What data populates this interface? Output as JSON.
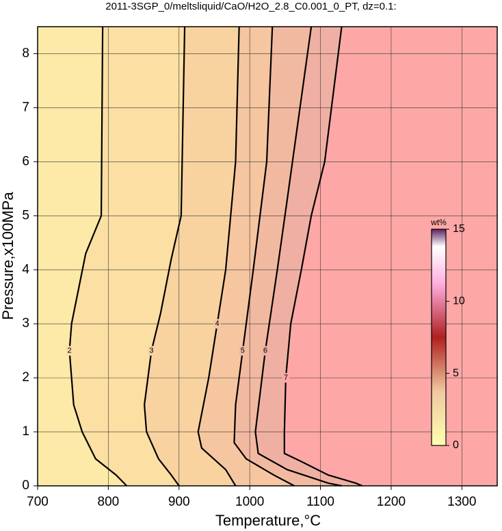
{
  "chart_data": {
    "type": "contour",
    "title": "2011-3SGP_0/meltsliquid/CaO/H2O_2.8_C0.001_0_PT, dz=0.1:",
    "x_label": "Temperature,°C",
    "y_label": "Pressure,x100MPa",
    "xlim": [
      700,
      1350
    ],
    "ylim": [
      0,
      8.5
    ],
    "xticks": [
      700,
      800,
      900,
      1000,
      1100,
      1200,
      1300
    ],
    "yticks": [
      0,
      1,
      2,
      3,
      4,
      5,
      6,
      7,
      8
    ],
    "grid": true,
    "background": "#fde9a8",
    "series": [
      {
        "level": 2,
        "color": "#fbdfa3",
        "x": [
          792,
          790,
          768,
          748,
          745,
          751,
          763,
          782,
          811,
          826
        ],
        "y": [
          8.5,
          5,
          4.3,
          3,
          2.5,
          1.5,
          1,
          0.5,
          0.2,
          0
        ]
      },
      {
        "level": 3,
        "color": "#f8d3a0",
        "x": [
          908,
          903,
          889,
          874,
          861,
          851,
          854,
          871,
          889,
          900
        ],
        "y": [
          8.5,
          5,
          4.2,
          3.2,
          2.5,
          1.5,
          1,
          0.5,
          0.2,
          0
        ]
      },
      {
        "level": 4,
        "color": "#f5c6a0",
        "x": [
          985,
          980,
          966,
          954,
          942,
          927,
          932,
          966,
          980
        ],
        "y": [
          8.5,
          6,
          4,
          3,
          2,
          1,
          0.7,
          0.3,
          0
        ]
      },
      {
        "level": 5,
        "color": "#f2b9a1",
        "x": [
          1032,
          1024,
          1005,
          990,
          980,
          978,
          995,
          1034,
          1063
        ],
        "y": [
          8.5,
          6,
          4,
          2.5,
          1.5,
          0.8,
          0.5,
          0.2,
          0
        ]
      },
      {
        "level": 6,
        "color": "#efb0a3",
        "x": [
          1087,
          1053,
          1039,
          1022,
          1008,
          1012,
          1053,
          1111,
          1130
        ],
        "y": [
          8.5,
          5.3,
          4,
          2.5,
          1,
          0.6,
          0.3,
          0.05,
          0
        ]
      },
      {
        "level": 7,
        "color": "#fda8a7",
        "x": [
          1130,
          1106,
          1087,
          1073,
          1058,
          1051,
          1049,
          1049,
          1073,
          1111,
          1150,
          1159
        ],
        "y": [
          8.5,
          6,
          5,
          4,
          3,
          2,
          1,
          0.6,
          0.45,
          0.2,
          0.05,
          0
        ]
      }
    ],
    "colorbar": {
      "label": "wt%",
      "clim": [
        0,
        15
      ],
      "ticks": [
        0,
        5,
        10,
        15
      ]
    }
  }
}
